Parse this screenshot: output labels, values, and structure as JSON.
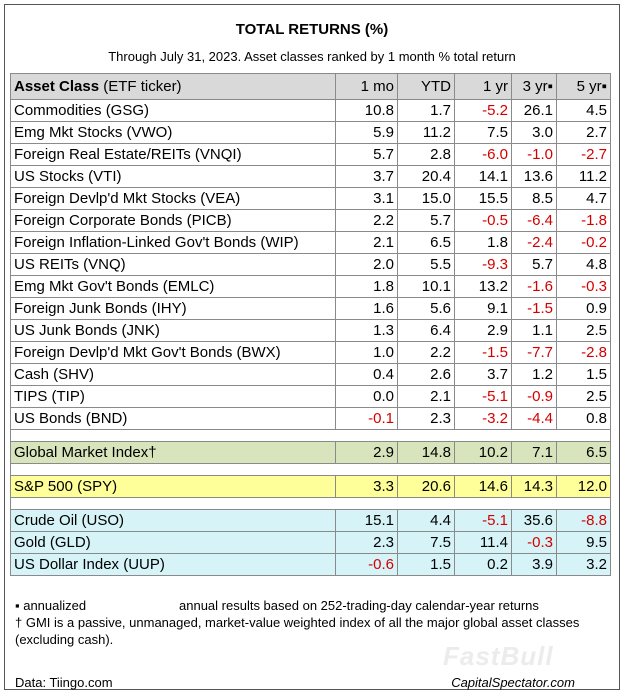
{
  "title": "TOTAL RETURNS (%)",
  "subtitle": "Through July 31, 2023. Asset classes ranked by 1 month % total return",
  "header": {
    "asset_bold": "Asset Class",
    "asset_rest": " (ETF ticker)",
    "m1": "1 mo",
    "ytd": "YTD",
    "y1": "1 yr",
    "y3": "3 yr▪",
    "y5": "5 yr▪"
  },
  "rows": [
    {
      "name": "Commodities (GSG)",
      "m1": "10.8",
      "ytd": "1.7",
      "y1": "-5.2",
      "y3": "26.1",
      "y5": "4.5"
    },
    {
      "name": "Emg Mkt Stocks (VWO)",
      "m1": "5.9",
      "ytd": "11.2",
      "y1": "7.5",
      "y3": "3.0",
      "y5": "2.7"
    },
    {
      "name": "Foreign Real Estate/REITs (VNQI)",
      "m1": "5.7",
      "ytd": "2.8",
      "y1": "-6.0",
      "y3": "-1.0",
      "y5": "-2.7"
    },
    {
      "name": "US Stocks (VTI)",
      "m1": "3.7",
      "ytd": "20.4",
      "y1": "14.1",
      "y3": "13.6",
      "y5": "11.2"
    },
    {
      "name": "Foreign Devlp'd Mkt Stocks (VEA)",
      "m1": "3.1",
      "ytd": "15.0",
      "y1": "15.5",
      "y3": "8.5",
      "y5": "4.7"
    },
    {
      "name": "Foreign Corporate Bonds (PICB)",
      "m1": "2.2",
      "ytd": "5.7",
      "y1": "-0.5",
      "y3": "-6.4",
      "y5": "-1.8"
    },
    {
      "name": "Foreign Inflation-Linked Gov't Bonds (WIP)",
      "m1": "2.1",
      "ytd": "6.5",
      "y1": "1.8",
      "y3": "-2.4",
      "y5": "-0.2"
    },
    {
      "name": "US REITs (VNQ)",
      "m1": "2.0",
      "ytd": "5.5",
      "y1": "-9.3",
      "y3": "5.7",
      "y5": "4.8"
    },
    {
      "name": "Emg Mkt Gov't Bonds (EMLC)",
      "m1": "1.8",
      "ytd": "10.1",
      "y1": "13.2",
      "y3": "-1.6",
      "y5": "-0.3"
    },
    {
      "name": "Foreign Junk Bonds (IHY)",
      "m1": "1.6",
      "ytd": "5.6",
      "y1": "9.1",
      "y3": "-1.5",
      "y5": "0.9"
    },
    {
      "name": "US Junk Bonds (JNK)",
      "m1": "1.3",
      "ytd": "6.4",
      "y1": "2.9",
      "y3": "1.1",
      "y5": "2.5"
    },
    {
      "name": "Foreign Devlp'd Mkt Gov't Bonds (BWX)",
      "m1": "1.0",
      "ytd": "2.2",
      "y1": "-1.5",
      "y3": "-7.7",
      "y5": "-2.8"
    },
    {
      "name": "Cash (SHV)",
      "m1": "0.4",
      "ytd": "2.6",
      "y1": "3.7",
      "y3": "1.2",
      "y5": "1.5"
    },
    {
      "name": "TIPS (TIP)",
      "m1": "0.0",
      "ytd": "2.1",
      "y1": "-5.1",
      "y3": "-0.9",
      "y5": "2.5"
    },
    {
      "name": "US Bonds (BND)",
      "m1": "-0.1",
      "ytd": "2.3",
      "y1": "-3.2",
      "y3": "-4.4",
      "y5": "0.8"
    }
  ],
  "gmi": {
    "name": "Global Market Index†",
    "m1": "2.9",
    "ytd": "14.8",
    "y1": "10.2",
    "y3": "7.1",
    "y5": "6.5"
  },
  "spy": {
    "name": "S&P 500 (SPY)",
    "m1": "3.3",
    "ytd": "20.6",
    "y1": "14.6",
    "y3": "14.3",
    "y5": "12.0"
  },
  "other": [
    {
      "name": "Crude Oil (USO)",
      "m1": "15.1",
      "ytd": "4.4",
      "y1": "-5.1",
      "y3": "35.6",
      "y5": "-8.8"
    },
    {
      "name": "Gold (GLD)",
      "m1": "2.3",
      "ytd": "7.5",
      "y1": "11.4",
      "y3": "-0.3",
      "y5": "9.5"
    },
    {
      "name": "US Dollar Index (UUP)",
      "m1": "-0.6",
      "ytd": "1.5",
      "y1": "0.2",
      "y3": "3.9",
      "y5": "3.2"
    }
  ],
  "notes": {
    "annualized_label": "▪ annualized",
    "annualized_desc": "annual results based on 252-trading-day calendar-year returns",
    "gmi_note": "† GMI is a passive, unmanaged, market-value weighted index of all the major global asset classes (excluding cash)."
  },
  "footer": {
    "data_source": "Data: Tiingo.com",
    "site": "CapitalSpectator.com"
  },
  "watermark": "FastBull",
  "colors": {
    "negative": "#d40000",
    "header_bg": "#d9d9d9",
    "gmi_bg": "#d7e4bc",
    "spy_bg": "#ffff99",
    "other_bg": "#d6f3f7"
  }
}
